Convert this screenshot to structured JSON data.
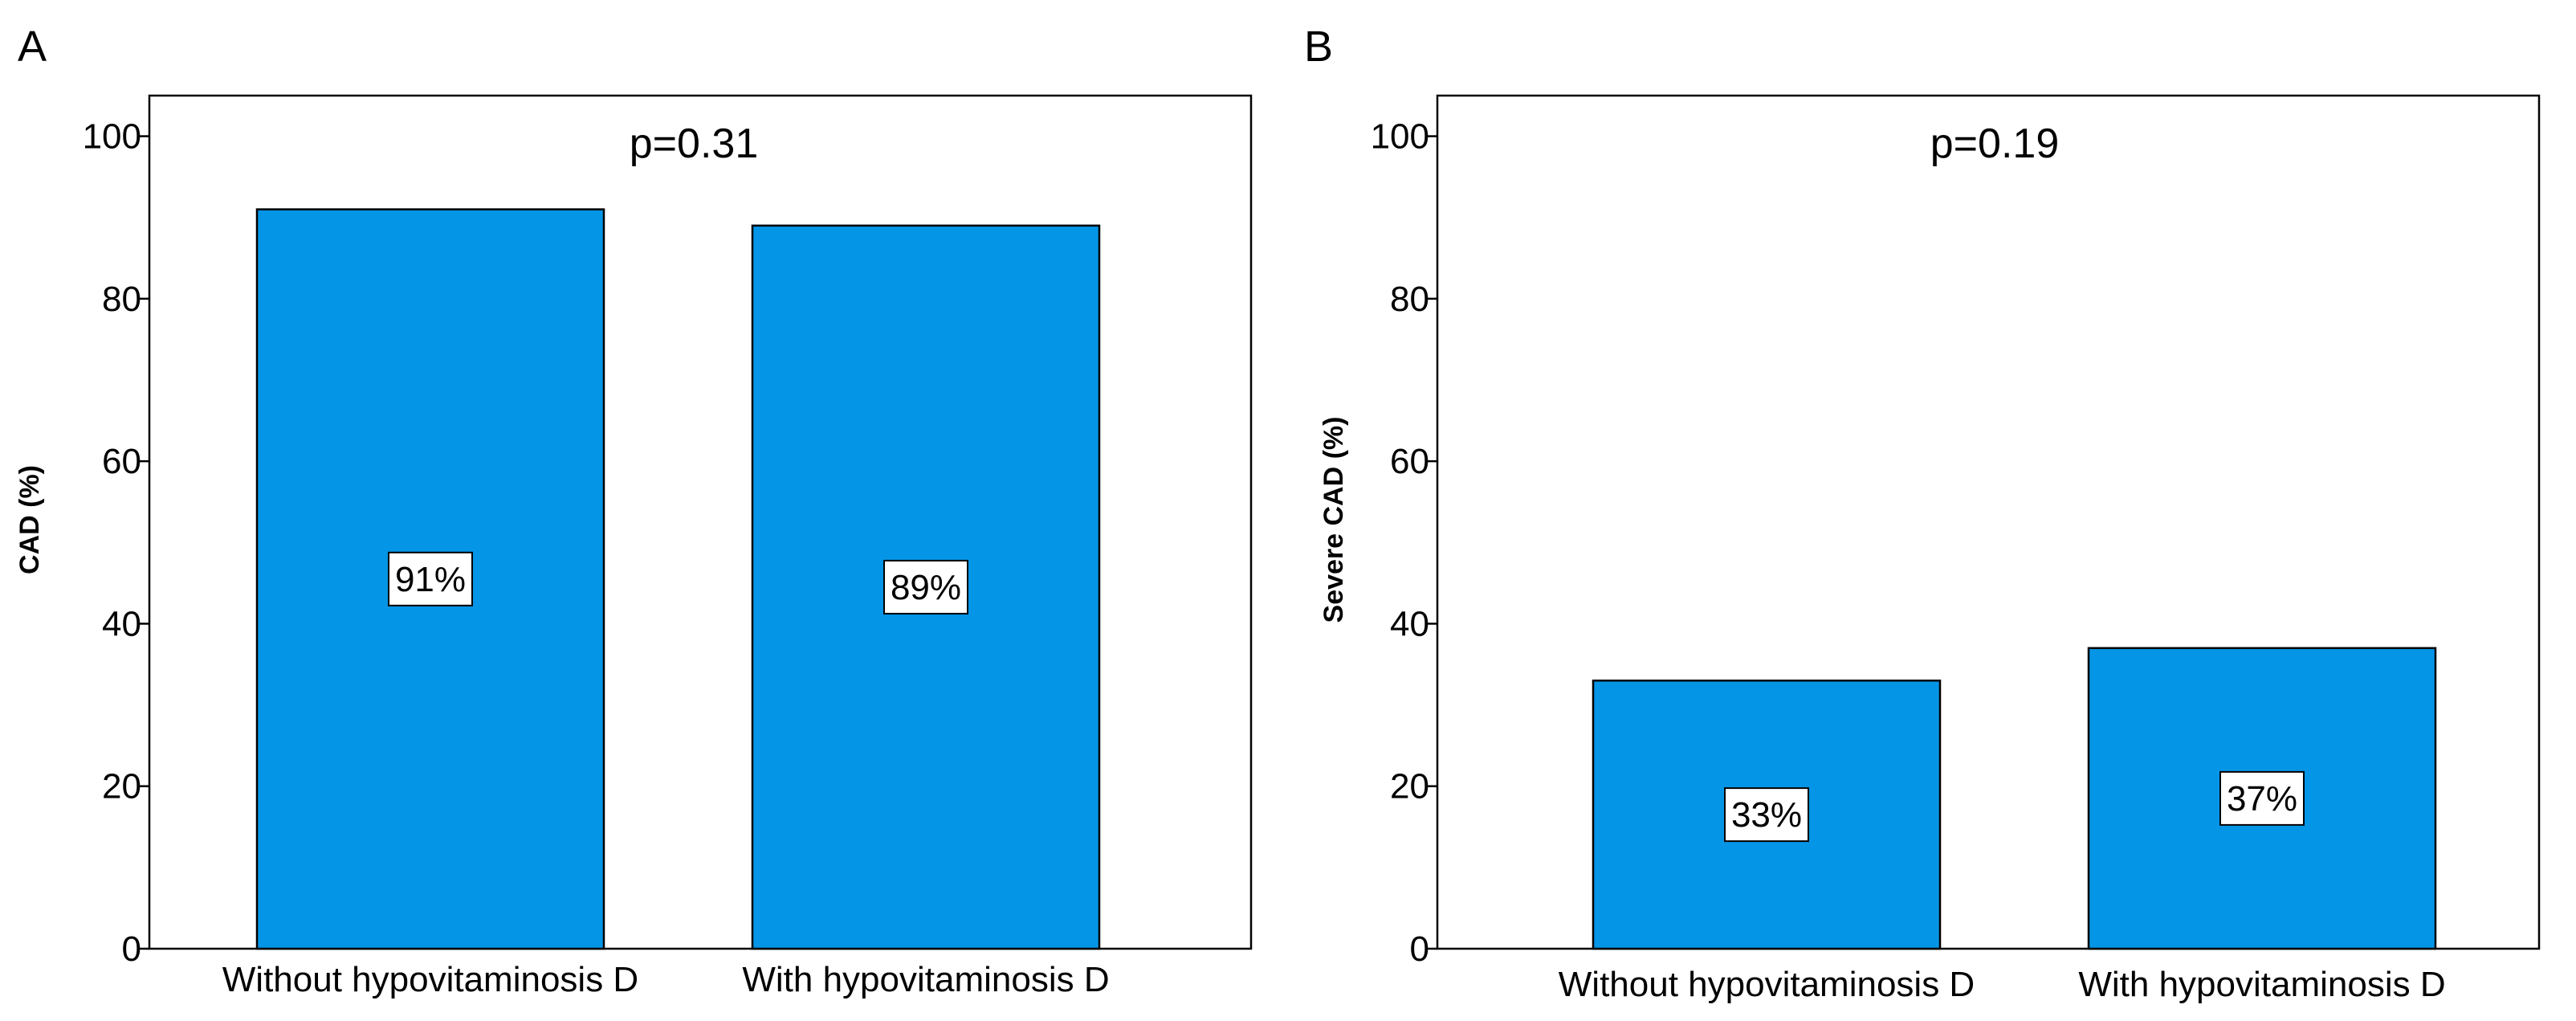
{
  "panels": [
    {
      "letter": "A",
      "annotation": "p=0.31",
      "ylabel": "CAD (%)"
    },
    {
      "letter": "B",
      "annotation": "p=0.19",
      "ylabel": "Severe CAD (%)"
    }
  ],
  "colors": {
    "bar_fill": "#0595E6",
    "bar_stroke": "#000000",
    "frame": "#000000",
    "label_box_fill": "#ffffff"
  },
  "chart_data": [
    {
      "type": "bar",
      "title": "",
      "annotation": "p=0.31",
      "xlabel": "",
      "ylabel": "CAD (%)",
      "categories": [
        "Without hypovitaminosis D",
        "With hypovitaminosis D"
      ],
      "values": [
        91,
        89
      ],
      "data_labels": [
        "91%",
        "89%"
      ],
      "ylim": [
        0,
        105
      ],
      "yticks": [
        0,
        20,
        40,
        60,
        80,
        100
      ],
      "ytick_labels": [
        "0",
        "20",
        "40",
        "60",
        "80",
        "100"
      ],
      "grid": false,
      "legend": "none"
    },
    {
      "type": "bar",
      "title": "",
      "annotation": "p=0.19",
      "xlabel": "",
      "ylabel": "Severe CAD (%)",
      "categories": [
        "Without hypovitaminosis D",
        "With hypovitaminosis D"
      ],
      "values": [
        33,
        37
      ],
      "data_labels": [
        "33%",
        "37%"
      ],
      "ylim": [
        0,
        105
      ],
      "yticks": [
        0,
        20,
        40,
        60,
        80,
        100
      ],
      "ytick_labels": [
        "0",
        "20",
        "40",
        "60",
        "80",
        "100"
      ],
      "grid": false,
      "legend": "none"
    }
  ]
}
